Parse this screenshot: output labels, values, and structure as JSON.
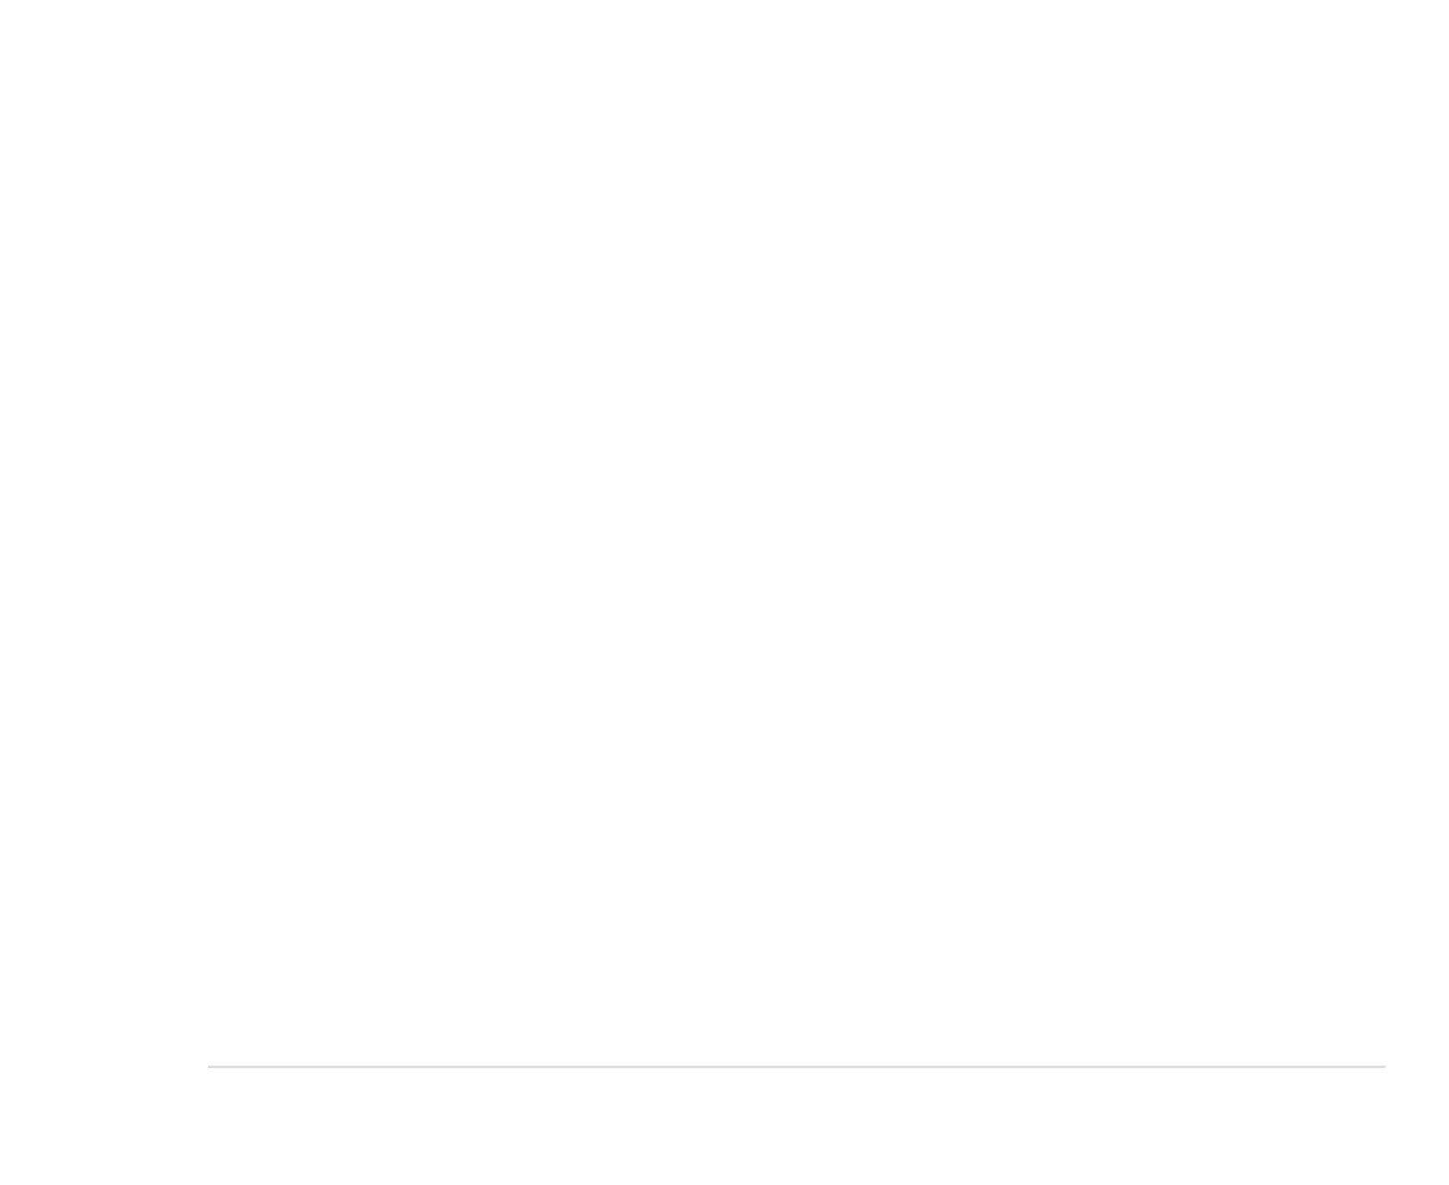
{
  "page": {
    "background_color": "#ffffff"
  },
  "footer": {
    "divider_color": "#dcdcdc"
  }
}
